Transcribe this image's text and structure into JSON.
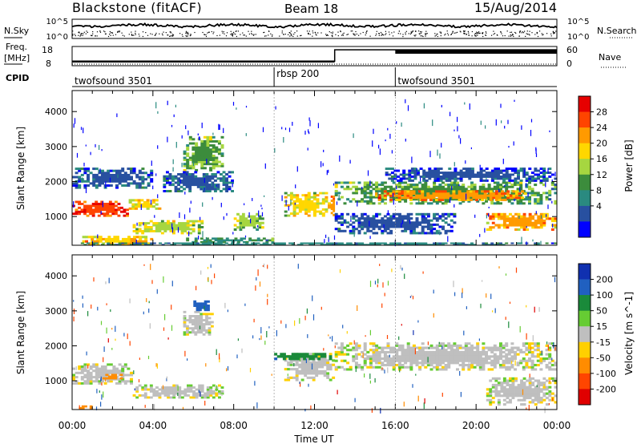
{
  "header": {
    "station": "Blackstone (fitACF)",
    "beam": "Beam 18",
    "date": "15/Aug/2014"
  },
  "noise_panel": {
    "left_label": "N.Sky",
    "right_label": "N.Search",
    "left_ticks": [
      "10^5",
      "10^0"
    ],
    "right_ticks": [
      "10^5",
      "10^0"
    ]
  },
  "freq_panel": {
    "left_label_1": "Freq.",
    "left_label_2": "[MHz]",
    "right_label": "Nave",
    "left_ticks": [
      "18",
      "8"
    ],
    "right_ticks": [
      "60",
      "0"
    ]
  },
  "cpid_panel": {
    "label": "CPID",
    "segments": [
      {
        "label": "twofsound 3501",
        "start_hour": 0,
        "end_hour": 10
      },
      {
        "label": "rbsp 200",
        "start_hour": 10,
        "end_hour": 16
      },
      {
        "label": "twofsound 3501",
        "start_hour": 16,
        "end_hour": 24
      }
    ]
  },
  "power_colorbar": {
    "title": "Power [dB]",
    "labels": [
      "28",
      "24",
      "20",
      "16",
      "12",
      "8",
      "4"
    ],
    "colors": [
      "#e60000",
      "#ff4400",
      "#ff9a00",
      "#ffd700",
      "#a6d640",
      "#3c8c3c",
      "#2a8a80",
      "#2850a0",
      "#0000ff"
    ]
  },
  "velocity_colorbar": {
    "title": "Velocity [m s^-1]",
    "labels": [
      "200",
      "100",
      "50",
      "15",
      "-15",
      "-50",
      "-100",
      "-200"
    ],
    "colors": [
      "#1030b0",
      "#2060c0",
      "#1a8a3a",
      "#66cc33",
      "#bfbfbf",
      "#ffd000",
      "#ff8c00",
      "#ff4500",
      "#e00000"
    ]
  },
  "x_axis": {
    "label": "Time UT",
    "ticks": [
      "00:00",
      "04:00",
      "08:00",
      "12:00",
      "16:00",
      "20:00",
      "00:00"
    ]
  },
  "chart_data": [
    {
      "type": "heatmap",
      "name": "power",
      "ylabel": "Slant Range [km]",
      "xlabel": "Time UT",
      "xlim": [
        0,
        24
      ],
      "ylim": [
        180,
        4600
      ],
      "yticks": [
        1000,
        2000,
        3000,
        4000
      ],
      "colorbar": "Power [dB]",
      "clim": [
        0,
        30
      ],
      "bands": [
        {
          "t0": 0.0,
          "t1": 2.8,
          "r0": 1000,
          "r1": 1450,
          "value": 26
        },
        {
          "t0": 2.8,
          "t1": 4.4,
          "r0": 1200,
          "r1": 1500,
          "value": 18
        },
        {
          "t0": 0.5,
          "t1": 4.0,
          "r0": 200,
          "r1": 450,
          "value": 20
        },
        {
          "t0": 3.0,
          "t1": 6.5,
          "r0": 500,
          "r1": 900,
          "value": 16
        },
        {
          "t0": 0.0,
          "t1": 4.0,
          "r0": 1800,
          "r1": 2400,
          "value": 6
        },
        {
          "t0": 5.5,
          "t1": 7.5,
          "r0": 2300,
          "r1": 3300,
          "value": 13
        },
        {
          "t0": 4.5,
          "t1": 8.0,
          "r0": 1700,
          "r1": 2300,
          "value": 6
        },
        {
          "t0": 8.0,
          "t1": 9.5,
          "r0": 600,
          "r1": 1100,
          "value": 14
        },
        {
          "t0": 5.5,
          "t1": 10.0,
          "r0": 250,
          "r1": 400,
          "value": 10
        },
        {
          "t0": 10.5,
          "t1": 12.8,
          "r0": 1000,
          "r1": 1700,
          "value": 17
        },
        {
          "t0": 12.8,
          "t1": 13.0,
          "r0": 900,
          "r1": 1600,
          "value": 22
        },
        {
          "t0": 13.0,
          "t1": 24.0,
          "r0": 1350,
          "r1": 2000,
          "value": 12
        },
        {
          "t0": 15.0,
          "t1": 22.5,
          "r0": 1450,
          "r1": 1750,
          "value": 22
        },
        {
          "t0": 20.5,
          "t1": 24.0,
          "r0": 600,
          "r1": 1100,
          "value": 21
        },
        {
          "t0": 13.0,
          "t1": 19.0,
          "r0": 500,
          "r1": 1100,
          "value": 5
        },
        {
          "t0": 15.5,
          "t1": 24.0,
          "r0": 2000,
          "r1": 2400,
          "value": 5
        },
        {
          "t0": 0.0,
          "t1": 24.0,
          "r0": 180,
          "r1": 260,
          "value": 8
        }
      ]
    },
    {
      "type": "heatmap",
      "name": "velocity",
      "ylabel": "Slant Range [km]",
      "xlabel": "Time UT",
      "xlim": [
        0,
        24
      ],
      "ylim": [
        180,
        4600
      ],
      "yticks": [
        1000,
        2000,
        3000,
        4000
      ],
      "colorbar": "Velocity [m s^-1]",
      "clim": [
        -250,
        250
      ],
      "bands": [
        {
          "t0": 0.0,
          "t1": 3.0,
          "r0": 900,
          "r1": 1500,
          "value": 0
        },
        {
          "t0": 1.5,
          "t1": 2.5,
          "r0": 1050,
          "r1": 1200,
          "value": -75
        },
        {
          "t0": 0.2,
          "t1": 1.0,
          "r0": 200,
          "r1": 300,
          "value": -75
        },
        {
          "t0": 3.0,
          "t1": 7.5,
          "r0": 500,
          "r1": 900,
          "value": 0
        },
        {
          "t0": 5.5,
          "t1": 7.0,
          "r0": 2300,
          "r1": 3000,
          "value": 0
        },
        {
          "t0": 6.0,
          "t1": 6.8,
          "r0": 3000,
          "r1": 3300,
          "value": 150
        },
        {
          "t0": 10.5,
          "t1": 13.0,
          "r0": 1000,
          "r1": 1800,
          "value": 0
        },
        {
          "t0": 13.0,
          "t1": 24.0,
          "r0": 1300,
          "r1": 2100,
          "value": 0
        },
        {
          "t0": 20.5,
          "t1": 24.0,
          "r0": 300,
          "r1": 1100,
          "value": 0
        },
        {
          "t0": 10.0,
          "t1": 13.0,
          "r0": 1600,
          "r1": 1800,
          "value": 75
        }
      ]
    },
    {
      "type": "line",
      "name": "noise",
      "series": [
        {
          "name": "N.Sky",
          "style": "solid"
        },
        {
          "name": "N.Search",
          "style": "dotted"
        }
      ]
    },
    {
      "type": "line",
      "name": "frequency",
      "series": [
        {
          "name": "Freq.",
          "style": "solid",
          "x": [
            0,
            13,
            13,
            16,
            16,
            24
          ],
          "y": [
            10.4,
            10.4,
            16.3,
            16.3,
            16.3,
            16.3
          ]
        },
        {
          "name": "Nave",
          "style": "dotted",
          "x": [
            0,
            24
          ],
          "y": [
            0,
            0
          ]
        }
      ]
    }
  ]
}
